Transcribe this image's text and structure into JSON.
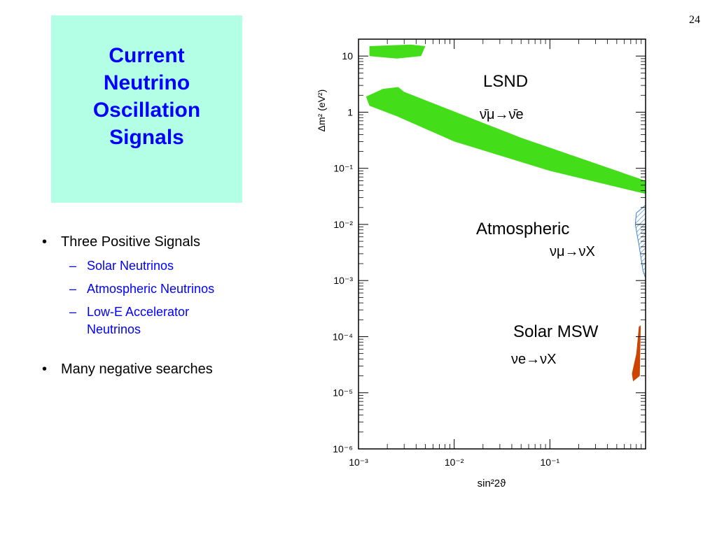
{
  "slide_number": "24",
  "title_lines": [
    "Current",
    "Neutrino",
    "Oscillation",
    "Signals"
  ],
  "bullets": [
    {
      "text": "Three Positive Signals",
      "subitems": [
        "Solar Neutrinos",
        "Atmospheric Neutrinos",
        "Low-E Accelerator Neutrinos"
      ]
    },
    {
      "text": "Many negative searches",
      "subitems": []
    }
  ],
  "colors": {
    "title_bg": "#b3ffe6",
    "title_text": "#0000ff",
    "subitem_text": "#0000ff",
    "lsnd": "#44dd1a",
    "atmospheric": "#3c82c8",
    "solar": "#cc4400"
  },
  "chart_data": {
    "type": "area",
    "xscale": "log",
    "yscale": "log",
    "xlim": [
      0.001,
      1
    ],
    "ylim": [
      1e-06,
      20
    ],
    "x_ticks": [
      0.001,
      0.01,
      0.1
    ],
    "x_tick_labels": [
      "10⁻³",
      "10⁻²",
      "10⁻¹"
    ],
    "y_ticks": [
      10,
      1,
      0.1,
      0.01,
      0.001,
      0.0001,
      1e-05,
      1e-06
    ],
    "y_tick_labels": [
      "10",
      "1",
      "10⁻¹",
      "10⁻²",
      "10⁻³",
      "10⁻⁴",
      "10⁻⁵",
      "10⁻⁶"
    ],
    "xlabel": "sin²2ϑ",
    "ylabel": "Δm² (eV²)",
    "regions": [
      {
        "name": "LSND",
        "process": "ν̄μ→ν̄e",
        "color": "#44dd1a",
        "fill": "solid",
        "polygons": [
          [
            [
              0.0013,
              15
            ],
            [
              0.0035,
              16
            ],
            [
              0.005,
              15
            ],
            [
              0.0045,
              10
            ],
            [
              0.0025,
              9
            ],
            [
              0.0013,
              10
            ]
          ],
          [
            [
              0.0012,
              1.9
            ],
            [
              0.0018,
              2.6
            ],
            [
              0.0026,
              2.8
            ],
            [
              0.003,
              2.3
            ],
            [
              0.05,
              0.35
            ],
            [
              1,
              0.06
            ],
            [
              1,
              0.035
            ],
            [
              0.1,
              0.09
            ],
            [
              0.01,
              0.3
            ],
            [
              0.0025,
              0.85
            ],
            [
              0.0013,
              1.3
            ]
          ]
        ]
      },
      {
        "name": "Atmospheric",
        "process": "νμ→νX",
        "color": "#3c82c8",
        "fill": "hatched",
        "polygons": [
          [
            [
              0.8,
              0.016
            ],
            [
              1,
              0.022
            ],
            [
              1,
              0.0011
            ],
            [
              0.94,
              0.0015
            ],
            [
              0.86,
              0.004
            ],
            [
              0.78,
              0.01
            ]
          ]
        ]
      },
      {
        "name": "Solar MSW",
        "process": "νe→νX",
        "color": "#cc4400",
        "fill": "solid",
        "polygons": [
          [
            [
              0.85,
              0.00015
            ],
            [
              0.89,
              0.00016
            ],
            [
              0.87,
              2e-05
            ],
            [
              0.74,
              1.6e-05
            ],
            [
              0.72,
              2.2e-05
            ],
            [
              0.8,
              5e-05
            ]
          ]
        ]
      }
    ]
  }
}
